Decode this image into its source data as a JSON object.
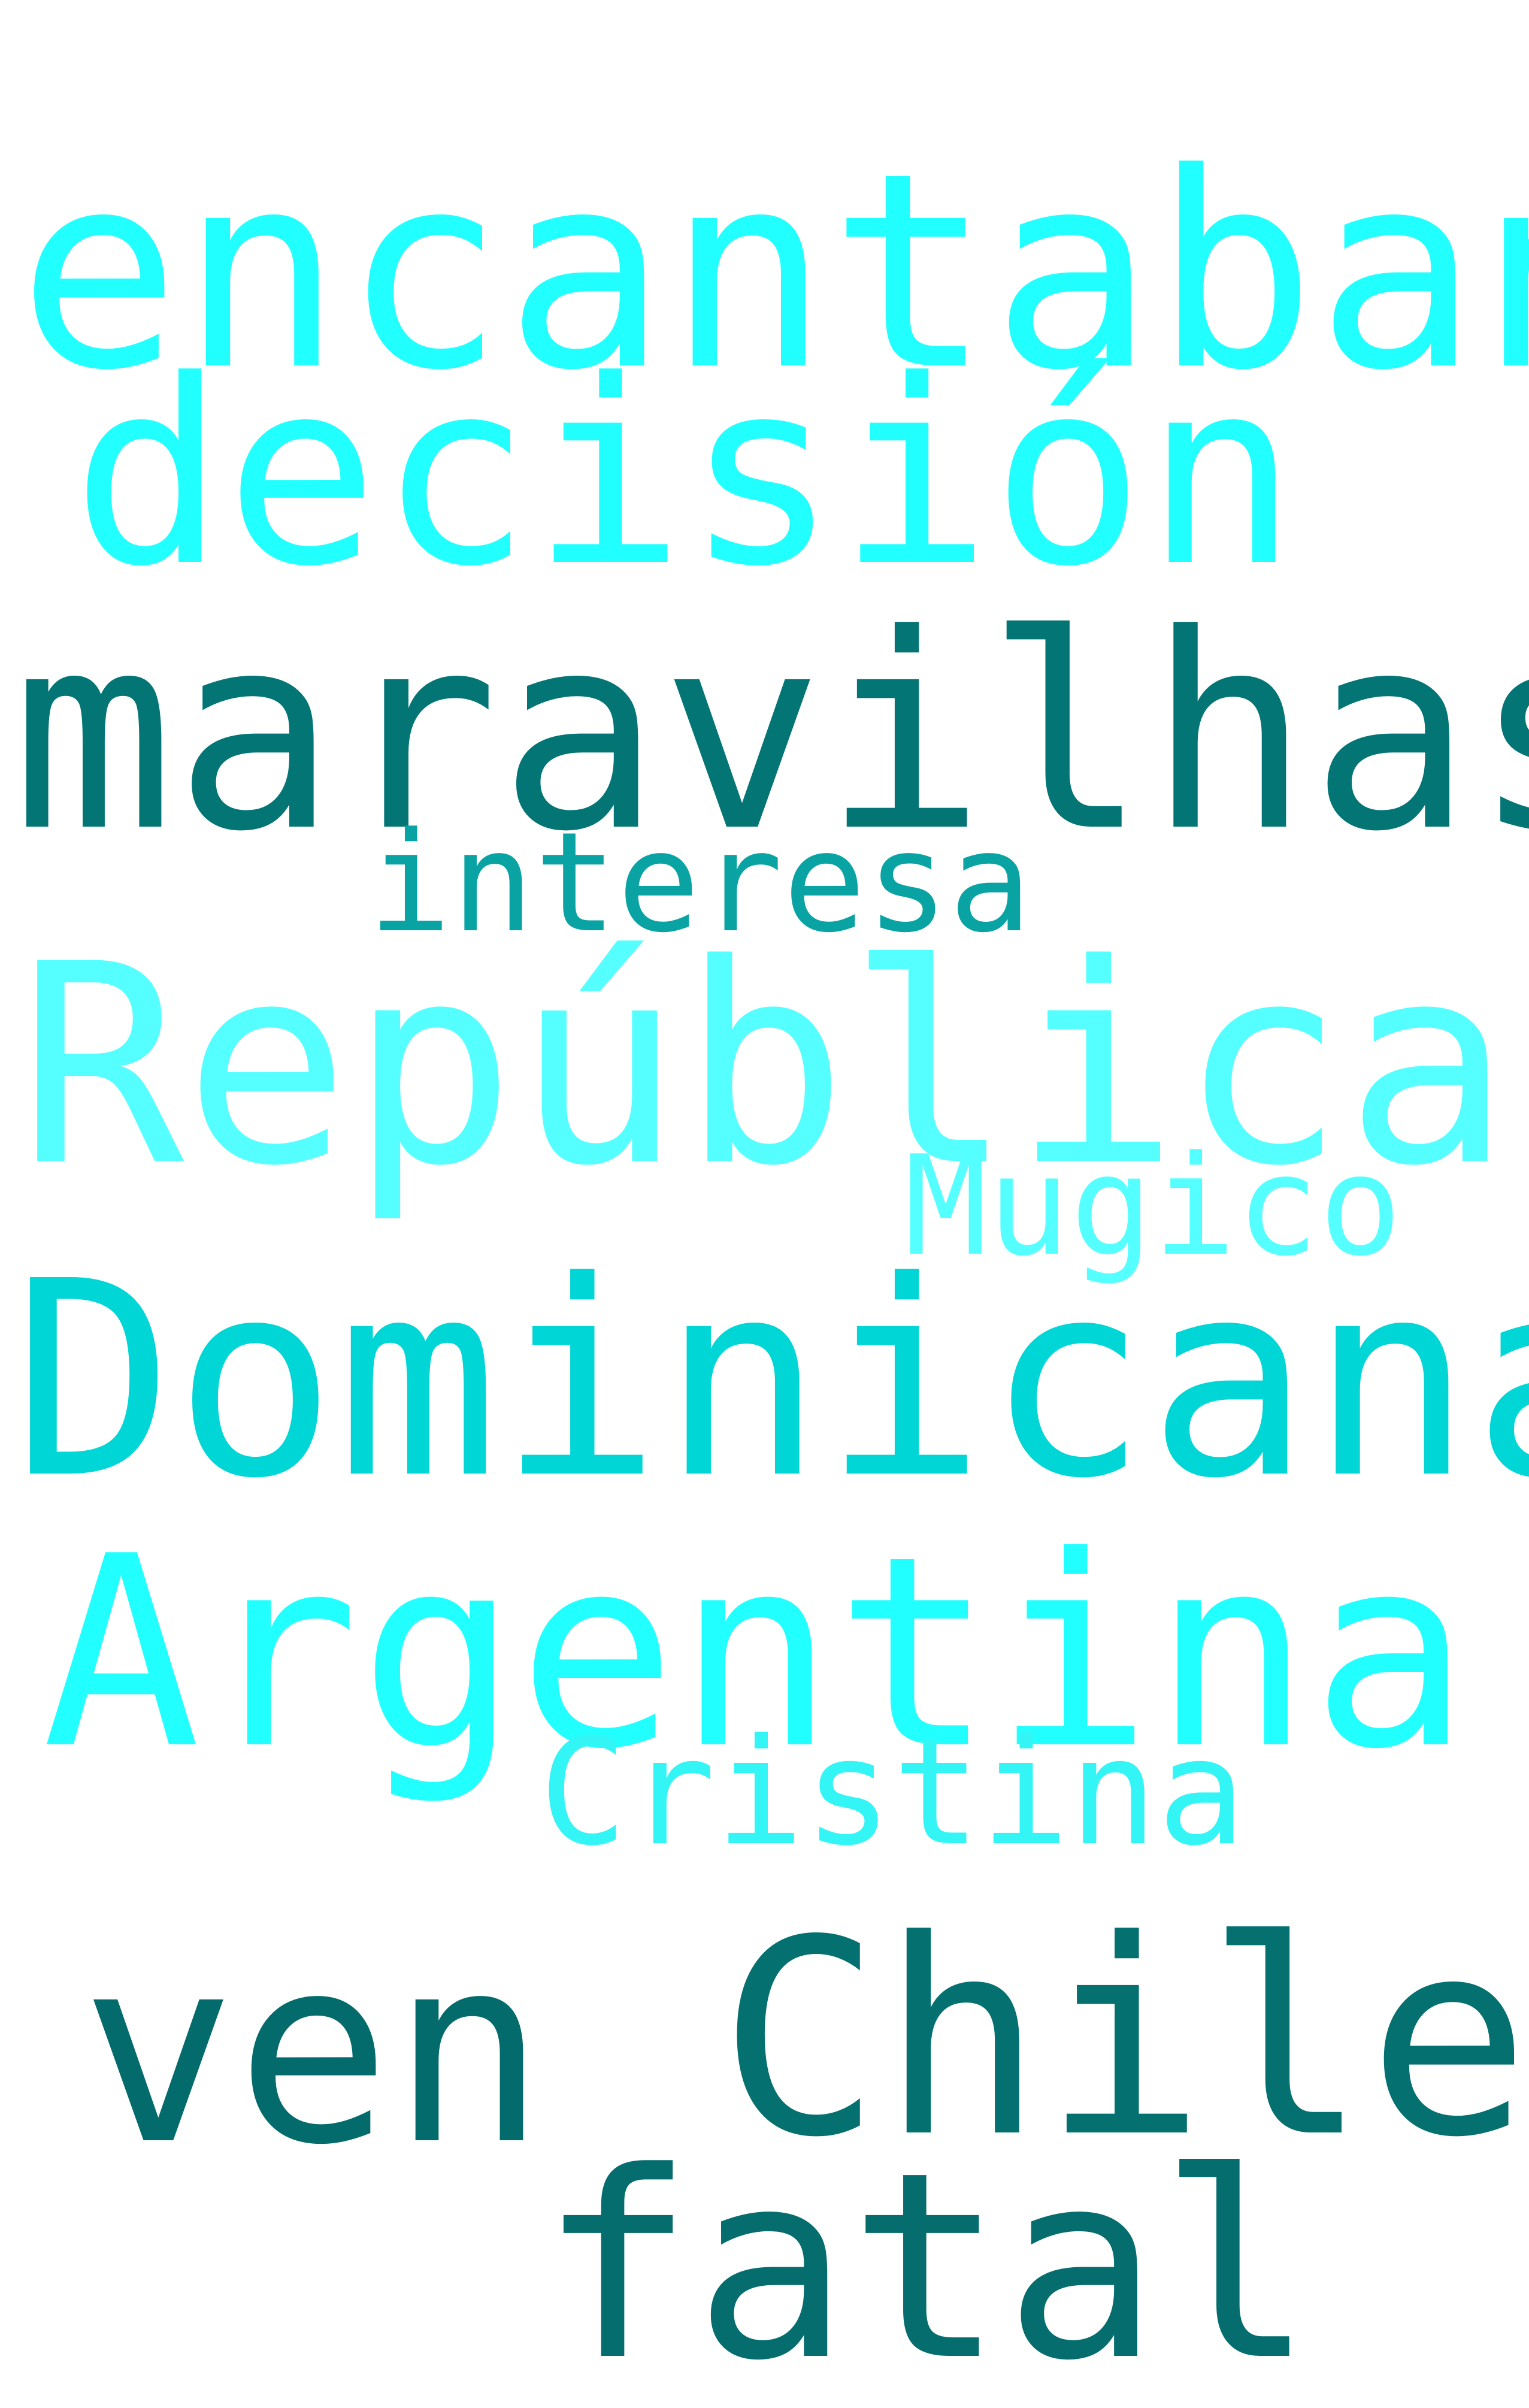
{
  "words": [
    {
      "id": "encantaban",
      "text": "encantaban",
      "color": "#22ffff"
    },
    {
      "id": "decision",
      "text": "decisión",
      "color": "#22ffff"
    },
    {
      "id": "maravilhas",
      "text": "maravilhas",
      "color": "#047575"
    },
    {
      "id": "interesa",
      "text": "interesa",
      "color": "#0aa3a3"
    },
    {
      "id": "republica",
      "text": "República",
      "color": "#55ffff"
    },
    {
      "id": "mugico",
      "text": "Mugico",
      "color": "#55ffff"
    },
    {
      "id": "dominicana",
      "text": "Dominicana",
      "color": "#00d6d6"
    },
    {
      "id": "argentina",
      "text": "Argentina",
      "color": "#22ffff"
    },
    {
      "id": "cristina",
      "text": "Cristina",
      "color": "#33f5f5"
    },
    {
      "id": "ven",
      "text": "ven",
      "color": "#036b6b"
    },
    {
      "id": "chile",
      "text": "Chile",
      "color": "#047070"
    },
    {
      "id": "fatal",
      "text": "fatal",
      "color": "#056d6d"
    }
  ]
}
